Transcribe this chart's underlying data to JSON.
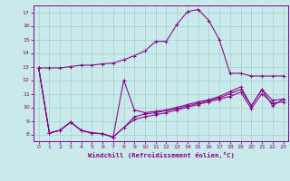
{
  "bg_color": "#c8eaea",
  "grid_color": "#a8cece",
  "line_color": "#880088",
  "xlabel": "Windchill (Refroidissement éolien,°C)",
  "xlim": [
    -0.5,
    23.5
  ],
  "ylim": [
    7.5,
    17.5
  ],
  "yticks": [
    8,
    9,
    10,
    11,
    12,
    13,
    14,
    15,
    16,
    17
  ],
  "xticks": [
    0,
    1,
    2,
    3,
    4,
    5,
    6,
    7,
    8,
    9,
    10,
    11,
    12,
    13,
    14,
    15,
    16,
    17,
    18,
    19,
    20,
    21,
    22,
    23
  ],
  "series1": [
    12.9,
    12.9,
    12.9,
    13.0,
    13.1,
    13.1,
    13.2,
    13.25,
    13.5,
    13.8,
    14.15,
    14.85,
    14.85,
    16.1,
    17.05,
    17.2,
    16.4,
    14.95,
    12.5,
    12.5,
    12.3,
    12.3,
    12.3,
    12.3
  ],
  "series2": [
    12.9,
    8.1,
    8.3,
    8.9,
    8.3,
    8.1,
    8.05,
    7.8,
    12.0,
    9.8,
    9.6,
    9.7,
    9.8,
    10.0,
    10.2,
    10.4,
    10.55,
    10.8,
    11.15,
    11.5,
    10.1,
    11.3,
    10.1,
    10.6
  ],
  "series3": [
    12.9,
    8.1,
    8.3,
    8.9,
    8.3,
    8.1,
    8.05,
    7.8,
    8.5,
    9.3,
    9.5,
    9.6,
    9.75,
    9.9,
    10.1,
    10.3,
    10.5,
    10.7,
    11.0,
    11.3,
    10.1,
    11.3,
    10.5,
    10.6
  ],
  "series4": [
    12.9,
    8.1,
    8.3,
    8.9,
    8.3,
    8.1,
    8.05,
    7.8,
    8.5,
    9.1,
    9.3,
    9.45,
    9.6,
    9.8,
    10.0,
    10.2,
    10.4,
    10.6,
    10.8,
    11.1,
    9.9,
    11.0,
    10.3,
    10.4
  ]
}
